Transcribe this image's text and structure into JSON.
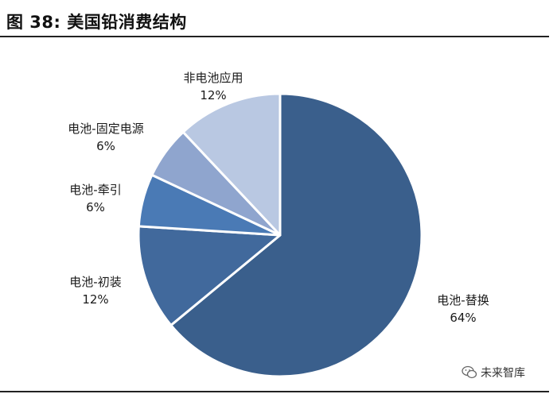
{
  "figure": {
    "title": "图 38:  美国铅消费结构"
  },
  "watermark": {
    "text": "未来智库",
    "icon": "wechat-icon"
  },
  "colors": {
    "rule": "#222222"
  },
  "chart_data": {
    "type": "pie",
    "title": "",
    "start_angle_deg": 0,
    "direction": "clockwise",
    "slices": [
      {
        "label": "电池-替换",
        "value": 64,
        "pct": "64%",
        "color": "#3a5f8c"
      },
      {
        "label": "电池-初装",
        "value": 12,
        "pct": "12%",
        "color": "#41699c"
      },
      {
        "label": "电池-牵引",
        "value": 6,
        "pct": "6%",
        "color": "#4a7ab5"
      },
      {
        "label": "电池-固定电源",
        "value": 6,
        "pct": "6%",
        "color": "#8fa5ce"
      },
      {
        "label": "非电池应用",
        "value": 12,
        "pct": "12%",
        "color": "#b9c8e2"
      }
    ]
  }
}
